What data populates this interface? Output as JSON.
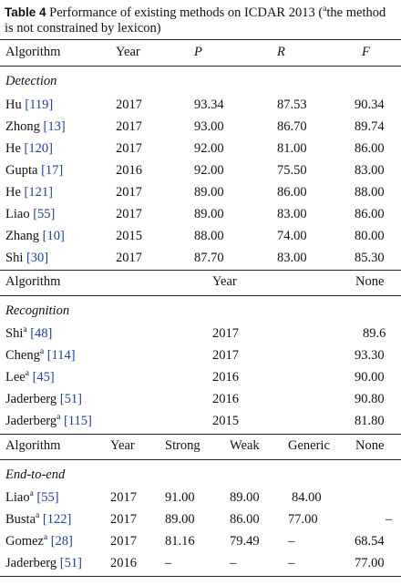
{
  "caption": {
    "label": "Table 4",
    "text_a": "Performance of existing methods on ICDAR 2013 (",
    "sup": "a",
    "text_b": "the method is not constrained by lexicon)"
  },
  "detection": {
    "headers": {
      "algorithm": "Algorithm",
      "year": "Year",
      "p": "P",
      "r": "R",
      "f": "F"
    },
    "section": "Detection",
    "rows": [
      {
        "name": "Hu",
        "ref": "[119]",
        "year": "2017",
        "p": "93.34",
        "r": "87.53",
        "f": "90.34"
      },
      {
        "name": "Zhong",
        "ref": "[13]",
        "year": "2017",
        "p": "93.00",
        "r": "86.70",
        "f": "89.74"
      },
      {
        "name": "He",
        "ref": "[120]",
        "year": "2017",
        "p": "92.00",
        "r": "81.00",
        "f": "86.00"
      },
      {
        "name": "Gupta",
        "ref": "[17]",
        "year": "2016",
        "p": "92.00",
        "r": "75.50",
        "f": "83.00"
      },
      {
        "name": "He",
        "ref": "[121]",
        "year": "2017",
        "p": "89.00",
        "r": "86.00",
        "f": "88.00"
      },
      {
        "name": "Liao",
        "ref": "[55]",
        "year": "2017",
        "p": "89.00",
        "r": "83.00",
        "f": "86.00"
      },
      {
        "name": "Zhang",
        "ref": "[10]",
        "year": "2015",
        "p": "88.00",
        "r": "74.00",
        "f": "80.00"
      },
      {
        "name": "Shi",
        "ref": "[30]",
        "year": "2017",
        "p": "87.70",
        "r": "83.00",
        "f": "85.30"
      }
    ]
  },
  "recognition": {
    "headers": {
      "algorithm": "Algorithm",
      "year": "Year",
      "none": "None"
    },
    "section": "Recognition",
    "rows": [
      {
        "name": "Shi",
        "sup": "a",
        "ref": "[48]",
        "year": "2017",
        "none": "89.6"
      },
      {
        "name": "Cheng",
        "sup": "a",
        "ref": "[114]",
        "year": "2017",
        "none": "93.30"
      },
      {
        "name": "Lee",
        "sup": "a",
        "ref": "[45]",
        "year": "2016",
        "none": "90.00"
      },
      {
        "name": "Jaderberg",
        "sup": "",
        "ref": "[51]",
        "year": "2016",
        "none": "90.80"
      },
      {
        "name": "Jaderberg",
        "sup": "a",
        "ref": "[115]",
        "year": "2015",
        "none": "81.80"
      }
    ]
  },
  "end_to_end": {
    "headers": {
      "algorithm": "Algorithm",
      "year": "Year",
      "strong": "Strong",
      "weak": "Weak",
      "generic": "Generic",
      "none": "None"
    },
    "section": "End-to-end",
    "rows": [
      {
        "name": "Liao",
        "sup": "a",
        "ref": "[55]",
        "year": "2017",
        "strong": "91.00",
        "weak": "89.00",
        "generic": "84.00",
        "none": ""
      },
      {
        "name": "Busta",
        "sup": "a",
        "ref": "[122]",
        "year": "2017",
        "strong": "89.00",
        "weak": "86.00",
        "generic": "77.00",
        "none": "–"
      },
      {
        "name": "Gomez",
        "sup": "a",
        "ref": "[28]",
        "year": "2017",
        "strong": "81.16",
        "weak": "79.49",
        "generic": "–",
        "none": "68.54"
      },
      {
        "name": "Jaderberg",
        "sup": "",
        "ref": "[51]",
        "year": "2016",
        "strong": "–",
        "weak": "–",
        "generic": "–",
        "none": "77.00"
      }
    ]
  }
}
